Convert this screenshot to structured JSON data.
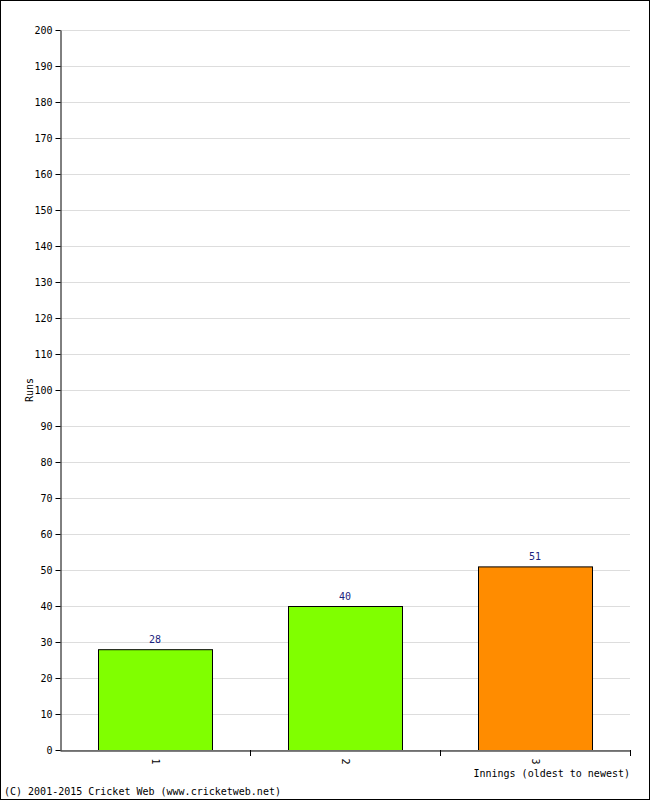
{
  "chart_data": {
    "type": "bar",
    "categories": [
      "1",
      "2",
      "3"
    ],
    "values": [
      28,
      40,
      51
    ],
    "colors": [
      "#80ff00",
      "#80ff00",
      "#ff8c00"
    ],
    "ylim": [
      0,
      200
    ],
    "yticks": [
      0,
      10,
      20,
      30,
      40,
      50,
      60,
      70,
      80,
      90,
      100,
      110,
      120,
      130,
      140,
      150,
      160,
      170,
      180,
      190,
      200
    ],
    "grid": true,
    "data_labels": true,
    "ylabel": "Runs",
    "xlabel": "Innings (oldest to newest)",
    "annotations": [
      "(C) 2001-2015 Cricket Web (www.cricketweb.net)"
    ]
  }
}
